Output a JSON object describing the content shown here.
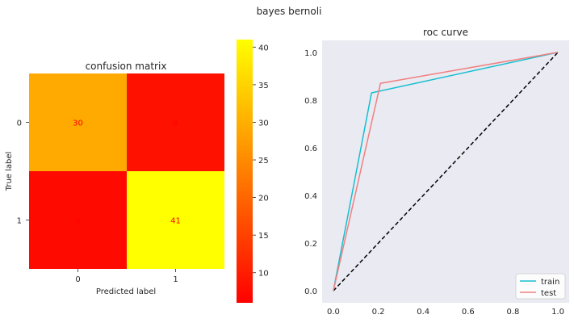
{
  "figure": {
    "suptitle": "bayes bernoli"
  },
  "chart_data": [
    {
      "type": "heatmap",
      "title": "confusion matrix",
      "xlabel": "Predicted label",
      "ylabel": "True label",
      "x_categories": [
        "0",
        "1"
      ],
      "y_categories": [
        "0",
        "1"
      ],
      "values": [
        [
          30,
          8
        ],
        [
          6,
          41
        ]
      ],
      "cell_colors": [
        [
          "#ffaa00",
          "#ff1100"
        ],
        [
          "#ff0a00",
          "#ffff00"
        ]
      ],
      "annotation_color": "#ff0000",
      "colorbar": {
        "colormap": "autumn",
        "range": [
          6,
          41
        ],
        "ticks": [
          "10",
          "15",
          "20",
          "25",
          "30",
          "35",
          "40"
        ]
      }
    },
    {
      "type": "line",
      "title": "roc curve",
      "xlim": [
        -0.05,
        1.05
      ],
      "ylim": [
        -0.05,
        1.05
      ],
      "x_ticks": [
        "0.0",
        "0.2",
        "0.4",
        "0.6",
        "0.8",
        "1.0"
      ],
      "y_ticks": [
        "0.0",
        "0.2",
        "0.4",
        "0.6",
        "0.8",
        "1.0"
      ],
      "background": "#eaeaf2",
      "series": [
        {
          "name": "train",
          "color": "#17becf",
          "points": [
            [
              0,
              0
            ],
            [
              0.17,
              0.83
            ],
            [
              1,
              1
            ]
          ]
        },
        {
          "name": "test",
          "color": "#f08080",
          "points": [
            [
              0,
              0
            ],
            [
              0.21,
              0.87
            ],
            [
              1,
              1
            ]
          ]
        },
        {
          "color": "#000000",
          "dashed": true,
          "points": [
            [
              0,
              0
            ],
            [
              1,
              1
            ]
          ]
        }
      ],
      "legend_position": "lower-right"
    }
  ]
}
